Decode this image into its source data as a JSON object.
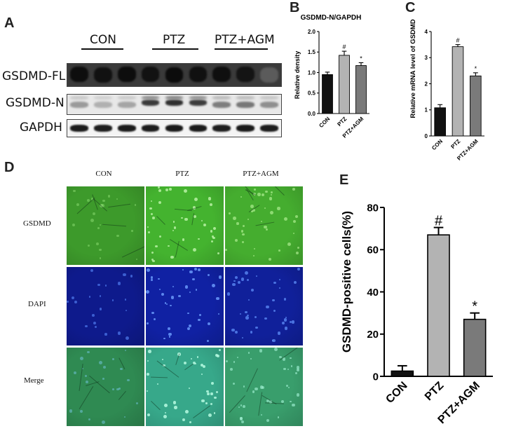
{
  "panels": {
    "A": {
      "letter": "A",
      "conditions": [
        "CON",
        "PTZ",
        "PTZ+AGM"
      ],
      "blots": [
        "GSDMD-FL",
        "GSDMD-N",
        "GAPDH"
      ]
    },
    "B": {
      "letter": "B"
    },
    "C": {
      "letter": "C"
    },
    "D": {
      "letter": "D",
      "columns": [
        "CON",
        "PTZ",
        "PTZ+AGM"
      ],
      "rows": [
        "GSDMD",
        "DAPI",
        "Merge"
      ]
    },
    "E": {
      "letter": "E"
    }
  },
  "chart_data": [
    {
      "id": "B",
      "type": "bar",
      "title": "GSDMD-N/GAPDH",
      "xlabel": "",
      "ylabel": "Relative density",
      "categories": [
        "CON",
        "PTZ",
        "PTZ+AGM"
      ],
      "values": [
        0.95,
        1.42,
        1.17
      ],
      "errors": [
        0.06,
        0.1,
        0.07
      ],
      "annotations": [
        "",
        "#",
        "*"
      ],
      "bar_colors": [
        "#111111",
        "#b3b3b3",
        "#7a7a7a"
      ],
      "ylim": [
        0,
        2.0
      ],
      "yticks": [
        0.0,
        0.5,
        1.0,
        1.5,
        2.0
      ],
      "ytick_labels": [
        "0.0",
        "0.5",
        "1.0",
        "1.5",
        "2.0"
      ],
      "grid": false
    },
    {
      "id": "C",
      "type": "bar",
      "title": "",
      "xlabel": "",
      "ylabel": "Relative mRNA level of GSDMD",
      "categories": [
        "CON",
        "PTZ",
        "PTZ+AGM"
      ],
      "values": [
        1.08,
        3.42,
        2.3
      ],
      "errors": [
        0.12,
        0.08,
        0.12
      ],
      "annotations": [
        "",
        "#",
        "*"
      ],
      "bar_colors": [
        "#111111",
        "#b3b3b3",
        "#7a7a7a"
      ],
      "ylim": [
        0,
        4
      ],
      "yticks": [
        0,
        1,
        2,
        3,
        4
      ],
      "ytick_labels": [
        "0",
        "1",
        "2",
        "3",
        "4"
      ],
      "grid": false
    },
    {
      "id": "E",
      "type": "bar",
      "title": "",
      "xlabel": "",
      "ylabel": "GSDMD-positive cells(%)",
      "categories": [
        "CON",
        "PTZ",
        "PTZ+AGM"
      ],
      "values": [
        2.5,
        67,
        27
      ],
      "errors": [
        2.5,
        3.5,
        3.0
      ],
      "annotations": [
        "",
        "#",
        "*"
      ],
      "bar_colors": [
        "#111111",
        "#b3b3b3",
        "#7a7a7a"
      ],
      "ylim": [
        0,
        80
      ],
      "yticks": [
        0,
        20,
        40,
        60,
        80
      ],
      "ytick_labels": [
        "0",
        "20",
        "40",
        "60",
        "80"
      ],
      "grid": false
    }
  ]
}
